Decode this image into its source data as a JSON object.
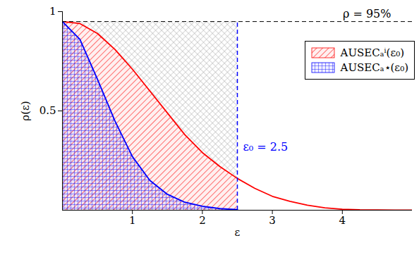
{
  "chart_data": {
    "type": "line",
    "x_label": "ε",
    "y_label": "ρ(ε)",
    "x": [
      0,
      0.25,
      0.5,
      0.75,
      1,
      1.25,
      1.5,
      1.75,
      2,
      2.25,
      2.5,
      2.75,
      3,
      3.25,
      3.5,
      3.75,
      4,
      4.25,
      4.5,
      4.75,
      5
    ],
    "series": [
      {
        "name": "AUSECₐⁱ(ε₀)",
        "color": "#ff0000",
        "values": [
          0.95,
          0.94,
          0.89,
          0.81,
          0.71,
          0.6,
          0.49,
          0.38,
          0.29,
          0.22,
          0.16,
          0.11,
          0.07,
          0.045,
          0.025,
          0.012,
          0.005,
          0.002,
          0.001,
          0,
          0
        ]
      },
      {
        "name": "AUSECₐ⋆(ε₀)",
        "color": "#0000ff",
        "values": [
          0.95,
          0.86,
          0.66,
          0.45,
          0.27,
          0.15,
          0.08,
          0.04,
          0.02,
          0.008,
          0.003,
          null,
          null,
          null,
          null,
          null,
          null,
          null,
          null,
          null,
          null
        ]
      }
    ],
    "xlim": [
      0,
      5
    ],
    "ylim": [
      0,
      1
    ],
    "xticks": [
      1,
      2,
      3,
      4
    ],
    "yticks": [
      0.5,
      1
    ],
    "reference_line": {
      "value": 0.95,
      "label": "ρ = 95%"
    },
    "threshold": {
      "value": 2.5,
      "label": "ε₀ = 2.5"
    },
    "legend": "upper right"
  }
}
